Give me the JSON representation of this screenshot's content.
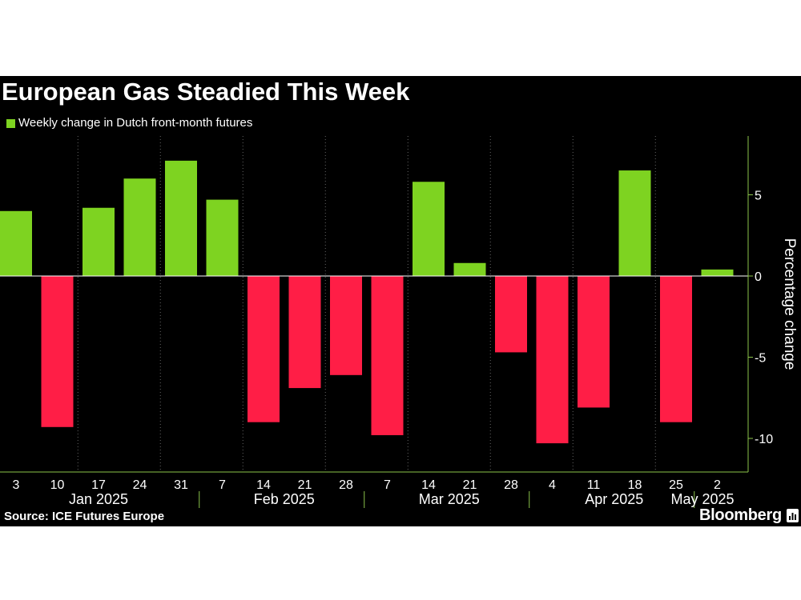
{
  "title": "European Gas Steadied This Week",
  "legend_label": "Weekly change in Dutch front-month futures",
  "source": "Source: ICE Futures Europe",
  "brand": "Bloomberg",
  "brand_icon": "bloomberg-chart-icon",
  "colors": {
    "background": "#000000",
    "positive": "#7ed321",
    "negative": "#ff1e46",
    "text": "#ffffff",
    "axis": "#8bc34a",
    "grid": "#666666"
  },
  "chart_data": {
    "type": "bar",
    "title": "European Gas Steadied This Week",
    "series": [
      {
        "name": "Weekly change in Dutch front-month futures",
        "values": [
          4.0,
          -9.3,
          4.2,
          6.0,
          7.1,
          4.7,
          -9.0,
          -6.9,
          -6.1,
          -9.8,
          5.8,
          0.8,
          -4.7,
          -10.3,
          -8.1,
          6.5,
          -9.0,
          0.4
        ]
      }
    ],
    "categories": [
      "3",
      "10",
      "17",
      "24",
      "31",
      "7",
      "14",
      "21",
      "28",
      "7",
      "14",
      "21",
      "28",
      "4",
      "11",
      "18",
      "25",
      "2"
    ],
    "x_tick_labels": [
      "3",
      "10",
      "17",
      "24",
      "31",
      "7",
      "14",
      "21",
      "28",
      "7",
      "14",
      "21",
      "28",
      "4",
      "11",
      "18",
      "25",
      "2"
    ],
    "month_labels": [
      "Jan 2025",
      "Feb 2025",
      "Mar 2025",
      "Apr 2025",
      "May 2025"
    ],
    "ylabel": "Percentage change",
    "y_ticks": [
      5,
      0,
      -5,
      -10
    ],
    "y_tick_labels": [
      "5",
      "0",
      "-5",
      "-10"
    ],
    "ylim": [
      -12,
      8.5
    ],
    "y_axis_side": "right",
    "grid": "vertical dotted",
    "legend": "top-left"
  }
}
